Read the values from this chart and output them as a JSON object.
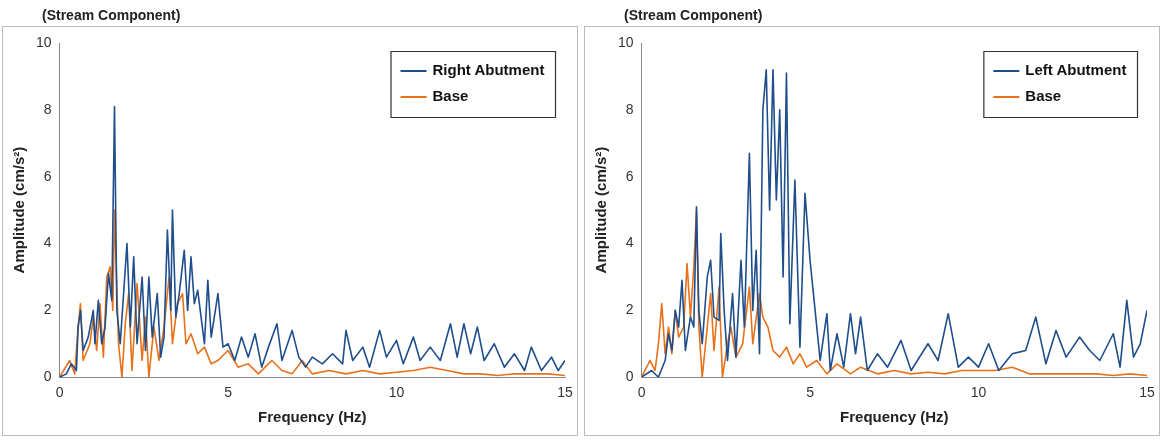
{
  "chart_data": [
    {
      "type": "line",
      "title": "(Stream Component)",
      "xlabel": "Frequency (Hz)",
      "ylabel": "Amplitude (cm/s²)",
      "xlim": [
        0,
        15
      ],
      "xticks": [
        0,
        5,
        10,
        15
      ],
      "ylim": [
        0,
        10
      ],
      "yticks": [
        0,
        2,
        4,
        6,
        8,
        10
      ],
      "grid": false,
      "legend": "top right",
      "marker": "none",
      "line_style": "solid",
      "series": [
        {
          "name": "Right Abutment",
          "color": "#1f4e8c",
          "x": [
            0,
            0.2,
            0.35,
            0.5,
            0.55,
            0.62,
            0.7,
            0.85,
            1.0,
            1.05,
            1.15,
            1.25,
            1.35,
            1.45,
            1.55,
            1.63,
            1.7,
            1.8,
            2.0,
            2.1,
            2.2,
            2.3,
            2.45,
            2.55,
            2.65,
            2.75,
            2.9,
            3.0,
            3.1,
            3.2,
            3.3,
            3.35,
            3.45,
            3.55,
            3.7,
            3.8,
            3.9,
            4.0,
            4.1,
            4.3,
            4.4,
            4.5,
            4.7,
            4.85,
            5.0,
            5.2,
            5.4,
            5.6,
            5.8,
            6.0,
            6.2,
            6.45,
            6.6,
            6.9,
            7.1,
            7.3,
            7.5,
            7.8,
            8.1,
            8.4,
            8.5,
            8.7,
            9.0,
            9.2,
            9.5,
            9.7,
            10.0,
            10.2,
            10.5,
            10.7,
            11.0,
            11.3,
            11.6,
            11.8,
            12.0,
            12.2,
            12.4,
            12.6,
            12.9,
            13.2,
            13.5,
            13.8,
            14.0,
            14.3,
            14.6,
            14.8,
            15.0
          ],
          "values": [
            0,
            0.1,
            0.4,
            0.2,
            1.5,
            2.0,
            0.8,
            1.2,
            2.0,
            1.0,
            2.3,
            1.0,
            1.5,
            3.1,
            2.3,
            8.1,
            2.0,
            1.0,
            4.0,
            1.5,
            3.6,
            1.0,
            3.0,
            0.8,
            3.0,
            1.2,
            2.5,
            0.6,
            1.2,
            4.4,
            2.0,
            5.0,
            1.8,
            2.5,
            3.8,
            2.0,
            3.6,
            2.2,
            2.6,
            1.0,
            2.9,
            1.2,
            2.5,
            0.9,
            1.0,
            0.5,
            1.2,
            0.6,
            1.3,
            0.3,
            0.9,
            1.6,
            0.5,
            1.4,
            0.6,
            0.3,
            0.6,
            0.4,
            0.7,
            0.4,
            1.4,
            0.5,
            0.9,
            0.3,
            1.4,
            0.6,
            1.1,
            0.4,
            1.2,
            0.5,
            0.9,
            0.5,
            1.6,
            0.6,
            1.6,
            0.7,
            1.5,
            0.5,
            1.0,
            0.3,
            0.7,
            0.2,
            0.9,
            0.2,
            0.6,
            0.2,
            0.5
          ]
        },
        {
          "name": "Base",
          "color": "#e8711a",
          "x": [
            0,
            0.3,
            0.45,
            0.55,
            0.62,
            0.7,
            0.9,
            1.0,
            1.1,
            1.2,
            1.3,
            1.4,
            1.5,
            1.58,
            1.63,
            1.75,
            1.85,
            1.95,
            2.05,
            2.15,
            2.3,
            2.45,
            2.55,
            2.65,
            2.8,
            2.95,
            3.1,
            3.25,
            3.35,
            3.5,
            3.65,
            3.75,
            3.9,
            4.1,
            4.3,
            4.5,
            4.7,
            5.0,
            5.3,
            5.6,
            5.9,
            6.1,
            6.3,
            6.6,
            6.9,
            7.2,
            7.5,
            8.0,
            8.5,
            9.0,
            9.5,
            10.0,
            10.5,
            11.0,
            11.5,
            12.0,
            12.5,
            13.0,
            13.5,
            14.0,
            14.5,
            15
          ],
          "values": [
            0,
            0.5,
            0.1,
            1.5,
            2.2,
            0.5,
            1.0,
            1.8,
            0.8,
            2.2,
            0.6,
            3.0,
            3.3,
            2.0,
            5.0,
            1.0,
            0,
            1.6,
            2.5,
            0.2,
            2.8,
            0.5,
            1.8,
            0,
            1.5,
            0.5,
            1.5,
            3.0,
            1.0,
            2.2,
            2.5,
            1.0,
            1.3,
            0.7,
            0.9,
            0.4,
            0.5,
            0.8,
            0.3,
            0.4,
            0.1,
            0.3,
            0.5,
            0.2,
            0.1,
            0.5,
            0.1,
            0.2,
            0.1,
            0.2,
            0.1,
            0.15,
            0.2,
            0.3,
            0.2,
            0.1,
            0.1,
            0.05,
            0.1,
            0.1,
            0.1,
            0.05
          ]
        }
      ]
    },
    {
      "type": "line",
      "title": "(Stream Component)",
      "xlabel": "Frequency (Hz)",
      "ylabel": "Amplitude (cm/s²)",
      "xlim": [
        0,
        15
      ],
      "xticks": [
        0,
        5,
        10,
        15
      ],
      "ylim": [
        0,
        10
      ],
      "yticks": [
        0,
        2,
        4,
        6,
        8,
        10
      ],
      "grid": false,
      "legend": "top right",
      "marker": "none",
      "line_style": "solid",
      "series": [
        {
          "name": "Left Abutment",
          "color": "#1f4e8c",
          "x": [
            0,
            0.3,
            0.5,
            0.7,
            0.8,
            0.9,
            1.0,
            1.1,
            1.2,
            1.3,
            1.45,
            1.55,
            1.63,
            1.7,
            1.8,
            1.95,
            2.05,
            2.15,
            2.3,
            2.35,
            2.45,
            2.55,
            2.7,
            2.8,
            2.95,
            3.05,
            3.2,
            3.3,
            3.4,
            3.5,
            3.6,
            3.7,
            3.8,
            3.9,
            4.0,
            4.1,
            4.2,
            4.3,
            4.4,
            4.55,
            4.7,
            4.85,
            5.0,
            5.1,
            5.3,
            5.5,
            5.6,
            5.8,
            6.0,
            6.2,
            6.35,
            6.5,
            6.7,
            7.0,
            7.3,
            7.7,
            8.0,
            8.5,
            8.8,
            9.1,
            9.4,
            9.7,
            10.0,
            10.3,
            10.6,
            11.0,
            11.4,
            11.7,
            12.0,
            12.3,
            12.6,
            13.0,
            13.3,
            13.6,
            14.0,
            14.2,
            14.4,
            14.6,
            14.8,
            15.0
          ],
          "values": [
            0,
            0.2,
            0,
            0.5,
            1.3,
            0.8,
            2.0,
            1.5,
            2.9,
            0.8,
            1.8,
            1.5,
            5.1,
            2.0,
            1.0,
            3.0,
            3.5,
            1.8,
            1.7,
            4.3,
            2.0,
            0.5,
            2.5,
            0.6,
            3.5,
            1.5,
            6.7,
            2.0,
            3.8,
            0.7,
            8.0,
            9.2,
            5.0,
            9.2,
            5.3,
            8.0,
            3.0,
            9.1,
            1.6,
            5.9,
            0.9,
            5.5,
            3.5,
            2.5,
            0.5,
            1.9,
            0.2,
            1.3,
            0.3,
            1.9,
            0.7,
            1.8,
            0.2,
            0.7,
            0.3,
            1.1,
            0.2,
            1.0,
            0.5,
            1.9,
            0.3,
            0.6,
            0.3,
            1.0,
            0.2,
            0.7,
            0.8,
            1.8,
            0.4,
            1.4,
            0.6,
            1.2,
            0.8,
            0.5,
            1.3,
            0.3,
            2.3,
            0.6,
            1.0,
            2.0
          ]
        },
        {
          "name": "Base",
          "color": "#e8711a",
          "x": [
            0,
            0.25,
            0.4,
            0.5,
            0.6,
            0.7,
            0.8,
            0.9,
            1.0,
            1.1,
            1.25,
            1.35,
            1.45,
            1.55,
            1.63,
            1.7,
            1.8,
            1.95,
            2.05,
            2.15,
            2.3,
            2.4,
            2.55,
            2.65,
            2.8,
            3.0,
            3.2,
            3.3,
            3.5,
            3.6,
            3.75,
            3.9,
            4.1,
            4.3,
            4.5,
            4.7,
            4.9,
            5.2,
            5.5,
            5.8,
            6.2,
            6.5,
            7.0,
            7.5,
            8.0,
            8.5,
            9.0,
            9.5,
            10.0,
            10.5,
            11.0,
            11.5,
            12.0,
            12.5,
            13.0,
            13.5,
            14.0,
            14.5,
            15
          ],
          "values": [
            0,
            0.5,
            0.2,
            1.0,
            2.2,
            0.7,
            1.5,
            0.7,
            2.0,
            1.2,
            1.5,
            3.4,
            1.8,
            3.3,
            5.0,
            1.5,
            0,
            1.5,
            2.5,
            0.8,
            2.7,
            0,
            1.0,
            1.5,
            0.6,
            1.0,
            2.7,
            1.0,
            2.5,
            1.8,
            1.5,
            0.8,
            0.6,
            0.9,
            0.4,
            0.7,
            0.3,
            0.5,
            0.1,
            0.4,
            0.1,
            0.3,
            0.1,
            0.2,
            0.1,
            0.15,
            0.1,
            0.2,
            0.2,
            0.2,
            0.3,
            0.1,
            0.1,
            0.1,
            0.1,
            0.1,
            0.05,
            0.1,
            0.05
          ]
        }
      ]
    }
  ]
}
